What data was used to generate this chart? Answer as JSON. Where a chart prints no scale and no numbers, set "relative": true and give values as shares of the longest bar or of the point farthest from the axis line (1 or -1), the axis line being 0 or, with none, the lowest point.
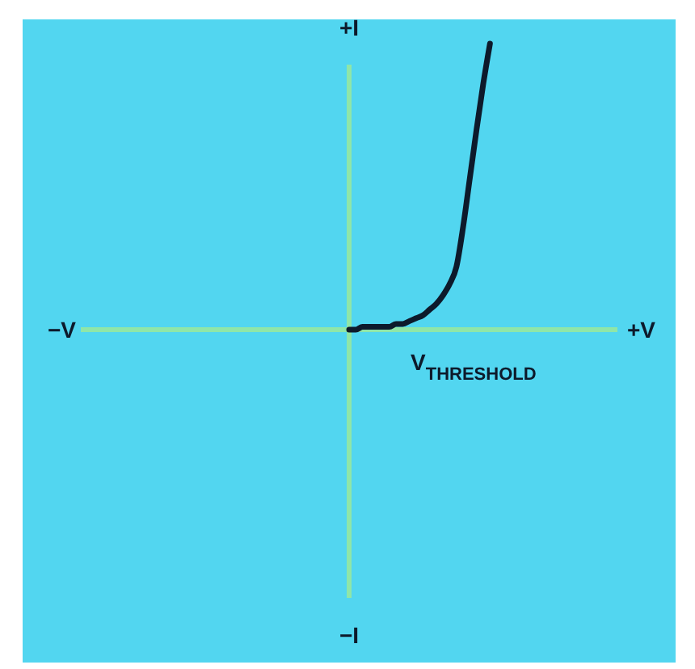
{
  "chart_data": {
    "type": "line",
    "relative": true,
    "tick_labels": false,
    "grid": false,
    "categories": [
      null,
      null,
      null,
      null,
      null,
      null,
      null,
      null,
      null,
      null,
      null,
      null,
      null,
      null,
      null,
      null,
      null,
      null,
      null,
      null,
      null,
      null,
      null,
      null,
      null,
      null,
      null,
      null,
      null,
      null,
      null,
      null,
      null,
      null,
      null,
      null,
      null,
      null,
      null,
      null,
      null,
      null,
      null,
      null,
      null,
      null,
      null,
      null,
      null,
      null,
      null,
      null,
      null,
      null,
      null,
      null,
      null,
      null,
      null,
      null,
      null,
      null,
      null,
      null,
      null,
      null,
      null,
      null,
      null,
      null,
      null,
      null,
      null,
      null,
      null,
      null,
      null,
      null,
      null,
      null,
      null
    ],
    "series": [
      {
        "color": "#0d1a2b",
        "values": [
          null,
          null,
          null,
          null,
          null,
          null,
          null,
          null,
          null,
          null,
          null,
          null,
          null,
          null,
          null,
          null,
          null,
          null,
          null,
          null,
          null,
          null,
          null,
          null,
          null,
          null,
          null,
          null,
          null,
          null,
          null,
          null,
          null,
          null,
          null,
          null,
          null,
          null,
          null,
          null,
          0,
          0,
          0.01,
          0.01,
          0.01,
          0.01,
          0.01,
          0.02,
          0.02,
          0.03,
          0.04,
          0.05,
          0.07,
          0.09,
          0.12,
          0.16,
          0.22,
          0.36,
          0.53,
          0.7,
          0.86,
          1,
          null,
          null,
          null,
          null,
          null,
          null,
          null,
          null,
          null,
          null,
          null,
          null,
          null,
          null,
          null,
          null,
          null,
          null,
          null
        ]
      }
    ],
    "annotations": [
      "−V",
      "+V",
      "+I",
      "−I",
      "V$_{THRESHOLD}$"
    ]
  }
}
